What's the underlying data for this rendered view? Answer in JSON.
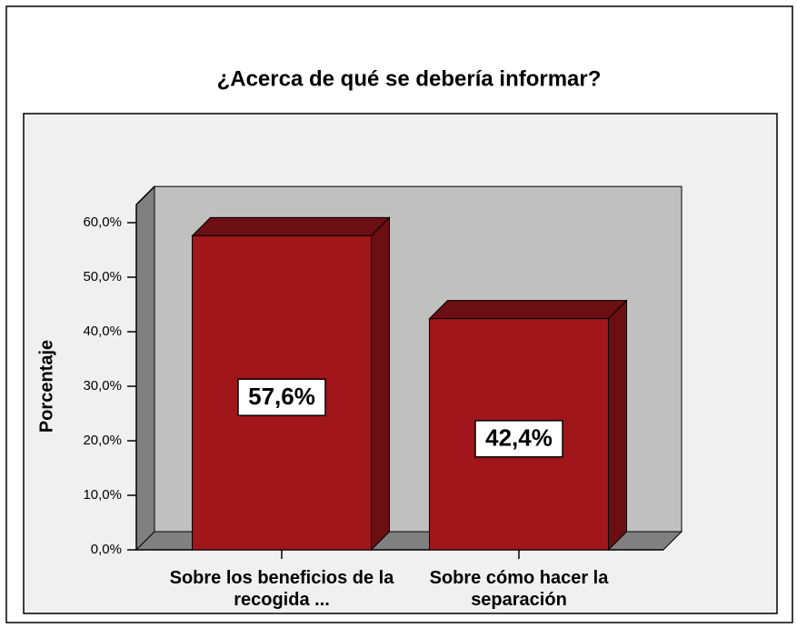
{
  "chart_data": {
    "type": "bar3d",
    "title": "¿Acerca de qué se debería informar?",
    "ylabel": "Porcentaje",
    "categories": [
      "Sobre los beneficios de la recogida ...",
      "Sobre cómo hacer la separación"
    ],
    "values": [
      57.6,
      42.4
    ],
    "value_labels": [
      "57,6%",
      "42,4%"
    ],
    "color": "#a0161a",
    "ylim": [
      0,
      63.3
    ],
    "yticks": [
      {
        "value": 0,
        "label": "0,0%"
      },
      {
        "value": 10,
        "label": "10,0%"
      },
      {
        "value": 20,
        "label": "20,0%"
      },
      {
        "value": 30,
        "label": "30,0%"
      },
      {
        "value": 40,
        "label": "40,0%"
      },
      {
        "value": 50,
        "label": "50,0%"
      },
      {
        "value": 60,
        "label": "60,0%"
      }
    ]
  }
}
